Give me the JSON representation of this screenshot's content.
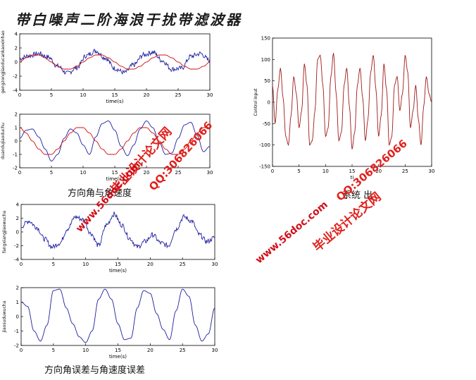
{
  "page": {
    "title": "带白噪声二阶海浪干扰带滤波器",
    "caption_1": "方向角与角速度",
    "caption_2": "方向角误差与角速度误差",
    "caption_3_partial": "系统  出"
  },
  "watermark": {
    "site": "毕业设计论文网",
    "qq": "QQ:306826066",
    "url": "www.56doc.com"
  },
  "colors": {
    "blue": "#1f1fa0",
    "red": "#cc1111",
    "dark_red": "#a01818",
    "axis": "#000000"
  },
  "chart_data": [
    {
      "type": "line",
      "ylabel": "gengzongjiaoducankaoxinhao",
      "xlabel": "time(s)",
      "xlim": [
        0,
        30
      ],
      "ylim": [
        -4,
        4
      ],
      "xticks": [
        0,
        5,
        10,
        15,
        20,
        25,
        30
      ],
      "yticks": [
        -4,
        -2,
        0,
        2,
        4
      ],
      "series": [
        {
          "color": "#1f1fa0",
          "noisy": true,
          "x": [
            0,
            1.5,
            3,
            4.5,
            6,
            7.5,
            9,
            10.5,
            12,
            13.5,
            15,
            16.5,
            18,
            19.5,
            21,
            22.5,
            24,
            25.5,
            27,
            28.5,
            30
          ],
          "y": [
            0.5,
            0.9,
            1.2,
            0.7,
            -0.6,
            -1.6,
            -0.8,
            0.9,
            1.6,
            0.6,
            -0.9,
            -1.5,
            -0.4,
            1.0,
            1.4,
            0.2,
            -1.0,
            -0.9,
            0.8,
            1.2,
            0.2
          ]
        },
        {
          "color": "#cc1111",
          "noisy": false,
          "x": [
            0,
            1,
            2,
            3,
            4,
            5,
            6,
            7,
            8,
            9,
            10,
            11,
            12,
            13,
            14,
            15,
            16,
            17,
            18,
            19,
            20,
            21,
            22,
            23,
            24,
            25,
            26,
            27,
            28,
            29,
            30
          ],
          "y": [
            0,
            0.6,
            1.0,
            1.0,
            0.6,
            0,
            -0.6,
            -1.0,
            -1.0,
            -0.6,
            0,
            0.6,
            1.0,
            1.0,
            0.6,
            0,
            -0.6,
            -1.0,
            -1.0,
            -0.6,
            0,
            0.6,
            1.0,
            1.0,
            0.6,
            0,
            -0.6,
            -1.0,
            -1.0,
            -0.6,
            0
          ]
        }
      ]
    },
    {
      "type": "line",
      "ylabel": "duandujiaoduchu",
      "xlabel": "time(s)",
      "xlim": [
        0,
        30
      ],
      "ylim": [
        -2,
        2
      ],
      "xticks": [
        0,
        5,
        10,
        15,
        20,
        25,
        30
      ],
      "yticks": [
        -2,
        -1,
        0,
        1,
        2
      ],
      "series": [
        {
          "color": "#1f1fa0",
          "noisy": false,
          "x": [
            0,
            1,
            2,
            3,
            4,
            5,
            6,
            7,
            8,
            9,
            10,
            11,
            12,
            13,
            14,
            15,
            16,
            17,
            18,
            19,
            20,
            21,
            22,
            23,
            24,
            25,
            26,
            27,
            28,
            29,
            30
          ],
          "y": [
            0.2,
            0.8,
            0.9,
            0.3,
            -0.6,
            -1.5,
            -1.0,
            0.2,
            0.9,
            0.6,
            -0.3,
            -1.0,
            0.3,
            1.3,
            1.5,
            0.8,
            -0.4,
            -1.1,
            -0.3,
            0.9,
            1.5,
            1.0,
            -0.1,
            -1.0,
            -0.9,
            0.2,
            1.2,
            1.4,
            0.4,
            -0.8,
            -0.4
          ]
        },
        {
          "color": "#cc1111",
          "noisy": false,
          "x": [
            0,
            1,
            2,
            3,
            4,
            5,
            6,
            7,
            8,
            9,
            10,
            11,
            12,
            13,
            14,
            15,
            16,
            17,
            18,
            19,
            20,
            21,
            22,
            23,
            24,
            25,
            26,
            27,
            28,
            29,
            30
          ],
          "y": [
            1.0,
            0.6,
            0,
            -0.6,
            -1.0,
            -1.0,
            -0.6,
            0,
            0.6,
            1.0,
            1.0,
            0.6,
            0,
            -0.6,
            -1.0,
            -1.0,
            -0.6,
            0,
            0.6,
            1.0,
            1.0,
            0.6,
            0,
            -0.6,
            -1.0,
            -1.0,
            -0.6,
            0,
            0.6,
            1.0,
            1.0
          ]
        }
      ]
    },
    {
      "type": "line",
      "ylabel": "fangxiangjiaowucha",
      "xlabel": "time(s)",
      "xlim": [
        0,
        30
      ],
      "ylim": [
        -4,
        4
      ],
      "xticks": [
        0,
        5,
        10,
        15,
        20,
        25,
        30
      ],
      "yticks": [
        -4,
        -2,
        0,
        2,
        4
      ],
      "series": [
        {
          "color": "#1f1fa0",
          "noisy": true,
          "x": [
            0,
            1.2,
            2.4,
            3.6,
            4.8,
            6,
            7.2,
            8.4,
            9.6,
            10.8,
            12,
            13.2,
            14.4,
            15.6,
            16.8,
            18,
            19.2,
            20.4,
            21.6,
            22.8,
            24,
            25.2,
            26.4,
            27.6,
            28.8,
            30
          ],
          "y": [
            0.8,
            1.6,
            0.7,
            -1.0,
            -2.2,
            -1.6,
            0.5,
            2.2,
            1.8,
            -0.2,
            -2.0,
            1.0,
            2.6,
            1.0,
            -0.9,
            -2.2,
            -1.4,
            -0.4,
            -1.6,
            -2.0,
            0.4,
            2.2,
            1.6,
            -0.4,
            -1.4,
            -0.8
          ]
        }
      ]
    },
    {
      "type": "line",
      "ylabel": "jiaosuduwucha",
      "xlabel": "time(s)",
      "xlim": [
        0,
        30
      ],
      "ylim": [
        -2,
        2
      ],
      "xticks": [
        0,
        5,
        10,
        15,
        20,
        25,
        30
      ],
      "yticks": [
        -2,
        -1,
        0,
        1,
        2
      ],
      "series": [
        {
          "color": "#1f1fa0",
          "noisy": false,
          "x": [
            0,
            1,
            2,
            3,
            4,
            5,
            6,
            7,
            8,
            9,
            10,
            11,
            12,
            13,
            14,
            15,
            16,
            17,
            18,
            19,
            20,
            21,
            22,
            23,
            24,
            25,
            26,
            27,
            28,
            29,
            30
          ],
          "y": [
            1.0,
            0.7,
            -1.0,
            -1.7,
            -0.6,
            1.8,
            1.9,
            0.6,
            -0.5,
            -1.4,
            -1.8,
            -1.0,
            1.2,
            1.9,
            1.2,
            -0.5,
            -1.6,
            -1.5,
            0.6,
            1.8,
            1.6,
            0.2,
            -0.9,
            -1.6,
            0.4,
            1.9,
            1.4,
            -0.6,
            -1.7,
            -1.2,
            0.6
          ]
        }
      ]
    },
    {
      "type": "line",
      "ylabel": "Control input",
      "xlabel": "ti",
      "xlim": [
        0,
        30
      ],
      "ylim": [
        -150,
        150
      ],
      "xticks": [
        0,
        5,
        10,
        15,
        20,
        25,
        30
      ],
      "yticks": [
        -150,
        -100,
        -50,
        0,
        50,
        100,
        150
      ],
      "series": [
        {
          "color": "#a01818",
          "noisy": false,
          "x": [
            0,
            0.5,
            1,
            1.5,
            2,
            2.5,
            3,
            3.5,
            4,
            4.5,
            5,
            5.5,
            6,
            6.5,
            7,
            7.5,
            8,
            8.5,
            9,
            9.5,
            10,
            10.5,
            11,
            11.5,
            12,
            12.5,
            13,
            13.5,
            14,
            14.5,
            15,
            15.5,
            16,
            16.5,
            17,
            17.5,
            18,
            18.5,
            19,
            19.5,
            20,
            20.5,
            21,
            21.5,
            22,
            22.5,
            23,
            23.5,
            24,
            24.5,
            25,
            25.5,
            26,
            26.5,
            27,
            27.5,
            28,
            28.5,
            29,
            29.5,
            30
          ],
          "y": [
            40,
            -50,
            30,
            80,
            10,
            -80,
            -100,
            -30,
            60,
            20,
            -60,
            -20,
            90,
            40,
            -100,
            -90,
            -20,
            100,
            110,
            40,
            -80,
            -60,
            60,
            115,
            20,
            -90,
            -70,
            40,
            80,
            -10,
            -110,
            -70,
            40,
            80,
            10,
            -90,
            -40,
            70,
            110,
            30,
            -80,
            -30,
            90,
            30,
            -100,
            -80,
            40,
            60,
            -20,
            20,
            110,
            70,
            -60,
            -20,
            40,
            -40,
            -100,
            -10,
            60,
            20,
            0
          ]
        }
      ]
    }
  ]
}
